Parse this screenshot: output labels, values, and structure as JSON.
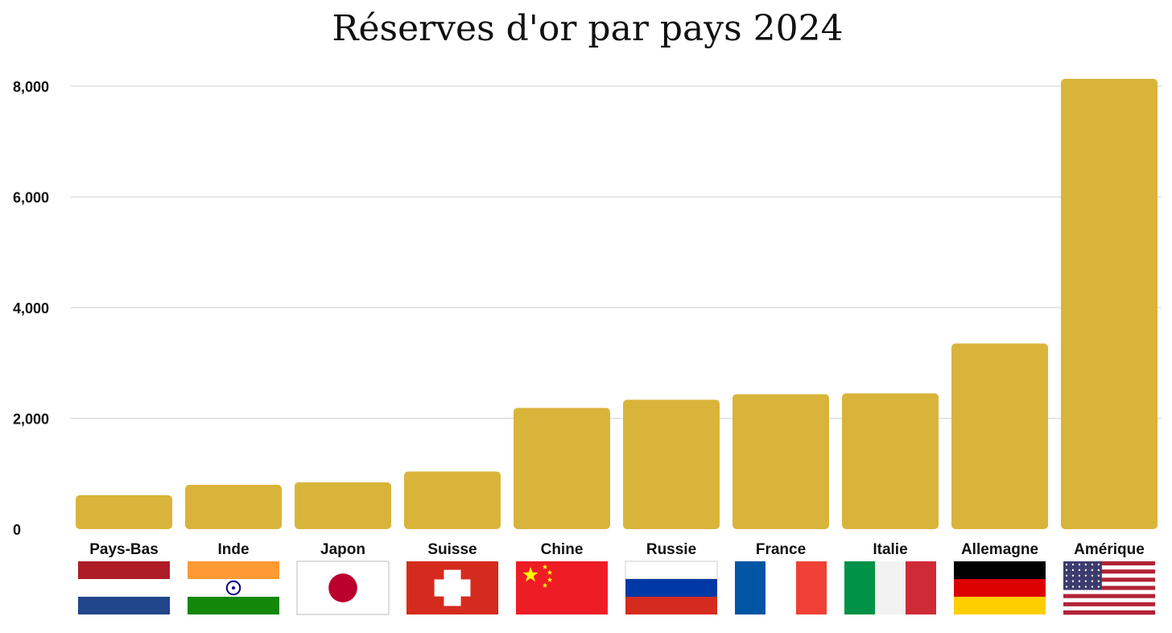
{
  "chart_data": {
    "type": "bar",
    "title": "Réserves d'or par pays 2024",
    "xlabel": "",
    "ylabel": "",
    "categories": [
      "Pays-Bas",
      "Inde",
      "Japon",
      "Suisse",
      "Chine",
      "Russie",
      "France",
      "Italie",
      "Allemagne",
      "Amérique"
    ],
    "values": [
      612,
      800,
      846,
      1040,
      2190,
      2336,
      2437,
      2452,
      3352,
      8133
    ],
    "ylim": [
      0,
      8000
    ],
    "yticks": [
      0,
      2000,
      4000,
      6000,
      8000
    ],
    "ytick_labels": [
      "0",
      "2,000",
      "4,000",
      "6,000",
      "8,000"
    ],
    "grid": true,
    "legend": "none",
    "bar_color": "#D9B43A",
    "flags": [
      "netherlands-flag",
      "india-flag",
      "japan-flag",
      "switzerland-flag",
      "china-flag",
      "russia-flag",
      "france-flag",
      "italy-flag",
      "germany-flag",
      "usa-flag"
    ]
  }
}
